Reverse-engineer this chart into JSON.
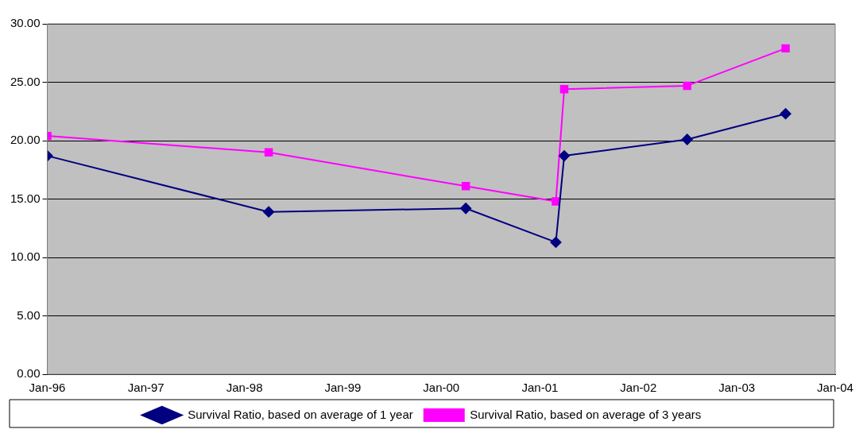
{
  "chart_data": {
    "type": "line",
    "x": [
      "1996-01",
      "1998-04",
      "2000-04",
      "2001-03",
      "2001-04",
      "2002-07",
      "2003-07"
    ],
    "series": [
      {
        "name": "Survival Ratio, based on average of 1 year",
        "color": "#000080",
        "marker": "diamond",
        "values": [
          18.7,
          13.9,
          14.2,
          11.3,
          18.7,
          20.1,
          22.3
        ]
      },
      {
        "name": "Survival Ratio, based on average of 3 years",
        "color": "#ff00ff",
        "marker": "square",
        "values": [
          20.4,
          19.0,
          16.1,
          14.8,
          24.4,
          24.7,
          27.9
        ]
      }
    ],
    "xlim": [
      "1996-01",
      "2004-01"
    ],
    "xticks": [
      {
        "value": "1996-01",
        "label": "Jan-96"
      },
      {
        "value": "1997-01",
        "label": "Jan-97"
      },
      {
        "value": "1998-01",
        "label": "Jan-98"
      },
      {
        "value": "1999-01",
        "label": "Jan-99"
      },
      {
        "value": "2000-01",
        "label": "Jan-00"
      },
      {
        "value": "2001-01",
        "label": "Jan-01"
      },
      {
        "value": "2002-01",
        "label": "Jan-02"
      },
      {
        "value": "2003-01",
        "label": "Jan-03"
      },
      {
        "value": "2004-01",
        "label": "Jan-04"
      }
    ],
    "ylim": [
      0,
      30
    ],
    "yticks": [
      {
        "value": 0,
        "label": "0.00"
      },
      {
        "value": 5,
        "label": "5.00"
      },
      {
        "value": 10,
        "label": "10.00"
      },
      {
        "value": 15,
        "label": "15.00"
      },
      {
        "value": 20,
        "label": "20.00"
      },
      {
        "value": 25,
        "label": "25.00"
      },
      {
        "value": 30,
        "label": "30.00"
      }
    ],
    "grid": "y",
    "legend": "bottom",
    "line_style": "solid"
  }
}
